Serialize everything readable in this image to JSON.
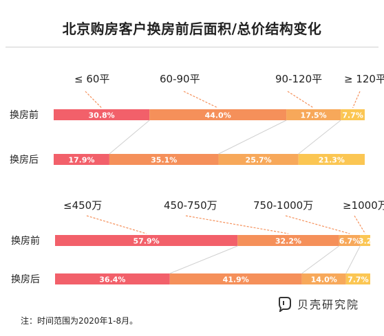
{
  "title": "北京购房客户换房前后面积/总价结构变化",
  "footnote": "注：时间范围为2020年1-8月。",
  "brand": {
    "name": "贝壳研究院",
    "logo_icon": "beike-logo-icon"
  },
  "colors": {
    "seg1": "#f2606a",
    "seg2": "#f5905a",
    "seg3": "#f7a85a",
    "seg4": "#fbc653",
    "connector": "#cfcfcf",
    "marker": "#f5905a"
  },
  "chart_data": [
    {
      "type": "bar",
      "orientation": "horizontal",
      "stacked": "100%",
      "categories": [
        "≤ 60平",
        "60-90平",
        "90-120平",
        "≥ 120平"
      ],
      "rows": [
        {
          "label": "换房前",
          "values": [
            30.8,
            44.0,
            17.5,
            7.7
          ]
        },
        {
          "label": "换房后",
          "values": [
            17.9,
            35.1,
            25.7,
            21.3
          ]
        }
      ],
      "value_labels": [
        [
          "30.8%",
          "44.0%",
          "17.5%",
          "7.7%"
        ],
        [
          "17.9%",
          "35.1%",
          "25.7%",
          "21.3%"
        ]
      ]
    },
    {
      "type": "bar",
      "orientation": "horizontal",
      "stacked": "100%",
      "categories": [
        "≤450万",
        "450-750万",
        "750-1000万",
        "≥1000万"
      ],
      "rows": [
        {
          "label": "换房前",
          "values": [
            57.9,
            32.2,
            6.7,
            3.2
          ]
        },
        {
          "label": "换房后",
          "values": [
            36.4,
            41.9,
            14.0,
            7.7
          ]
        }
      ],
      "value_labels": [
        [
          "57.9%",
          "32.2%",
          "6.7%",
          "3.2"
        ],
        [
          "36.4%",
          "41.9%",
          "14.0%",
          "7.7%"
        ]
      ]
    }
  ]
}
